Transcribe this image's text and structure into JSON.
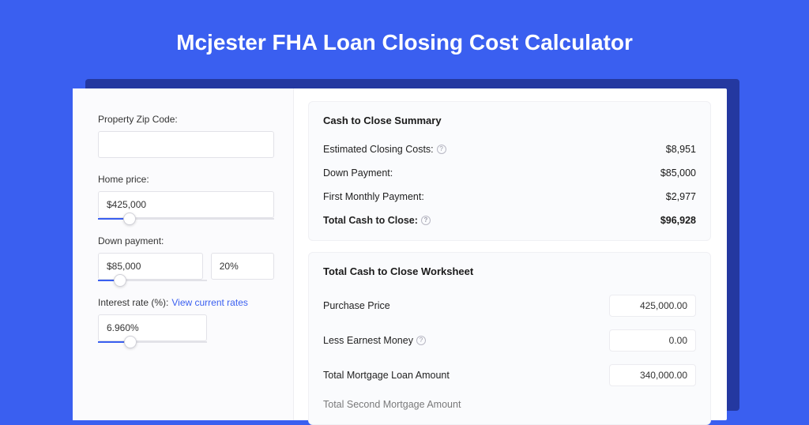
{
  "colors": {
    "page_bg": "#3a5ff0",
    "shadow": "#2438a0",
    "card_bg": "#ffffff",
    "left_bg": "#fbfbfd",
    "panel_bg": "#fafbfd",
    "border": "#e2e2e8",
    "accent": "#3a5ff0",
    "text": "#1a1a1a"
  },
  "title": "Mcjester FHA Loan Closing Cost Calculator",
  "left": {
    "zip": {
      "label": "Property Zip Code:",
      "value": ""
    },
    "home_price": {
      "label": "Home price:",
      "value": "$425,000",
      "slider_pct": 18
    },
    "down_payment": {
      "label": "Down payment:",
      "value": "$85,000",
      "pct_value": "20%",
      "slider_pct": 20
    },
    "interest": {
      "label": "Interest rate (%):",
      "link": "View current rates",
      "value": "6.960%",
      "slider_pct": 30
    }
  },
  "summary": {
    "title": "Cash to Close Summary",
    "rows": [
      {
        "label": "Estimated Closing Costs:",
        "help": true,
        "value": "$8,951",
        "bold": false
      },
      {
        "label": "Down Payment:",
        "help": false,
        "value": "$85,000",
        "bold": false
      },
      {
        "label": "First Monthly Payment:",
        "help": false,
        "value": "$2,977",
        "bold": false
      },
      {
        "label": "Total Cash to Close:",
        "help": true,
        "value": "$96,928",
        "bold": true
      }
    ]
  },
  "worksheet": {
    "title": "Total Cash to Close Worksheet",
    "rows": [
      {
        "label": "Purchase Price",
        "help": false,
        "value": "425,000.00"
      },
      {
        "label": "Less Earnest Money",
        "help": true,
        "value": "0.00"
      },
      {
        "label": "Total Mortgage Loan Amount",
        "help": false,
        "value": "340,000.00"
      }
    ],
    "cutoff_label": "Total Second Mortgage Amount"
  }
}
